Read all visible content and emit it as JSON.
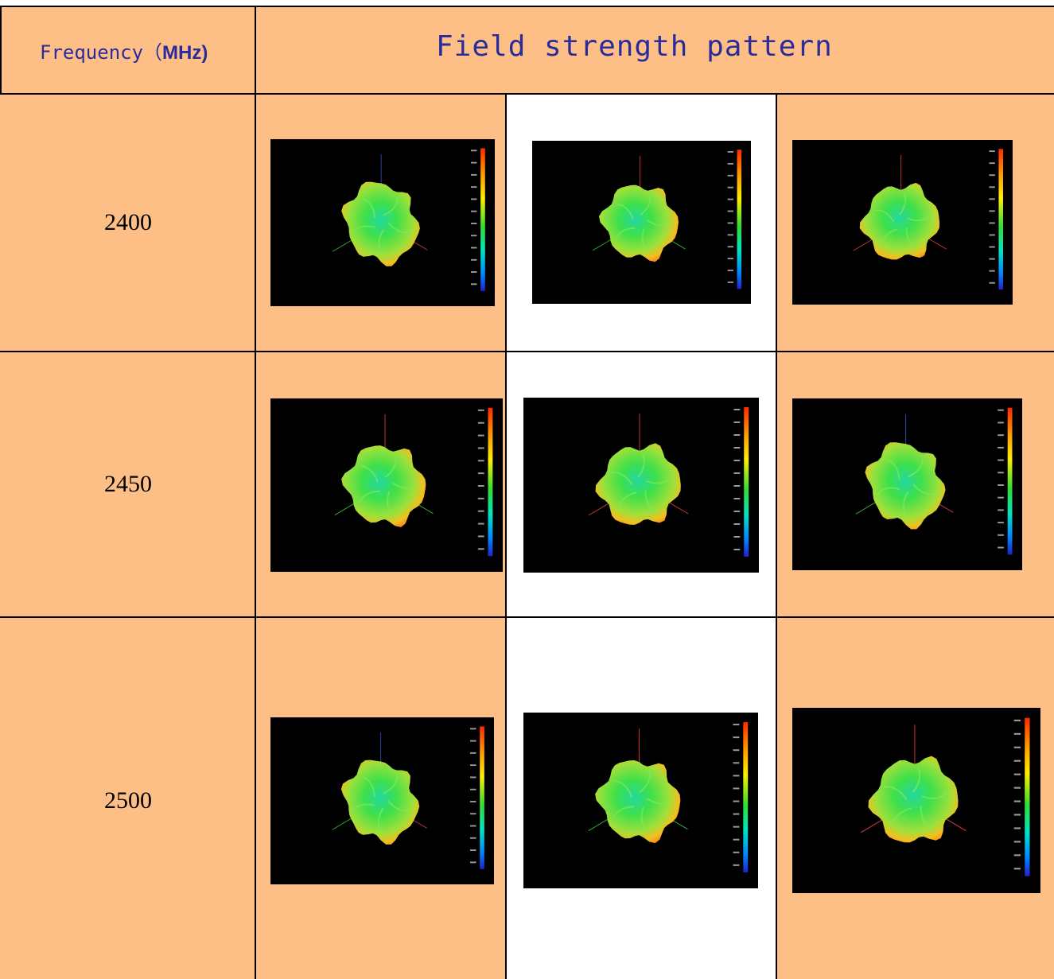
{
  "header": {
    "frequency_label": "Frequency（",
    "frequency_unit": "MHz)",
    "pattern_label": "Field strength pattern"
  },
  "rows": [
    {
      "frequency": "2400"
    },
    {
      "frequency": "2450"
    },
    {
      "frequency": "2500"
    }
  ],
  "colors": {
    "cell_background": "#fdbf86",
    "header_text": "#2b2b9a",
    "plot_background": "#000000"
  },
  "plot_icon": "3d-radiation-pattern-icon"
}
